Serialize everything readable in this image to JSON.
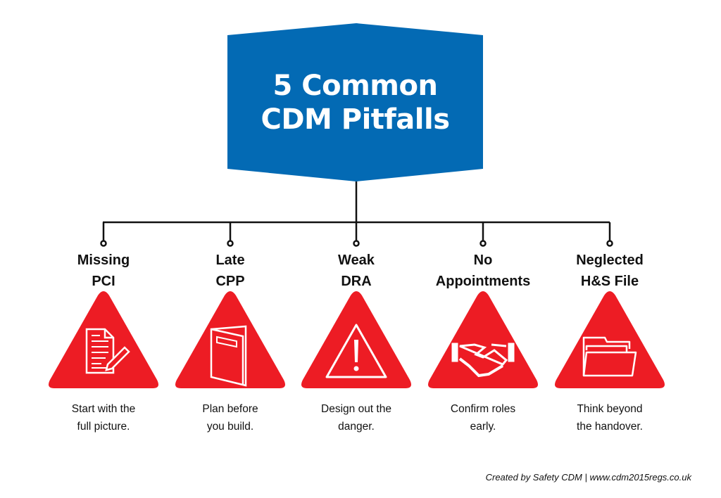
{
  "title": {
    "line1": "5 Common",
    "line2": "CDM Pitfalls"
  },
  "colors": {
    "header_blue": "#036AB4",
    "triangle_red": "#ED1C24",
    "connector": "#111111"
  },
  "pitfalls": [
    {
      "title1": "Missing",
      "title2": "PCI",
      "icon": "document-pencil-icon",
      "cap1": "Start with the",
      "cap2": "full picture."
    },
    {
      "title1": "Late",
      "title2": "CPP",
      "icon": "booklet-icon",
      "cap1": "Plan before",
      "cap2": "you build."
    },
    {
      "title1": "Weak",
      "title2": "DRA",
      "icon": "warning-exclamation-icon",
      "cap1": "Design out the",
      "cap2": "danger."
    },
    {
      "title1": "No",
      "title2": "Appointments",
      "icon": "handshake-icon",
      "cap1": "Confirm roles",
      "cap2": "early."
    },
    {
      "title1": "Neglected",
      "title2": "H&S File",
      "icon": "folder-icon",
      "cap1": "Think beyond",
      "cap2": "the handover."
    }
  ],
  "footer": "Created by Safety CDM | www.cdm2015regs.co.uk"
}
